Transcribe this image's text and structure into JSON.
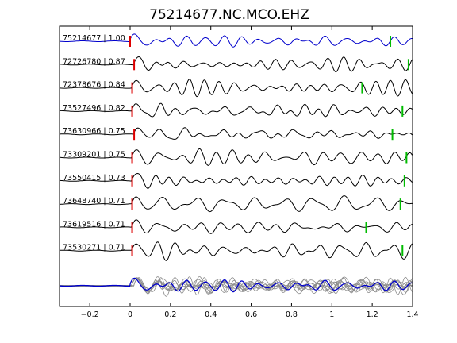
{
  "chart_data": {
    "type": "line",
    "title": "75214677.NC.MCO.EHZ",
    "xlabel": "",
    "ylabel": "",
    "xlim": [
      -0.35,
      1.4
    ],
    "xticks": [
      -0.2,
      0,
      0.2,
      0.4,
      0.6,
      0.8,
      1,
      1.2,
      1.4
    ],
    "xtick_labels": [
      "−0.2",
      "0",
      "0.2",
      "0.4",
      "0.6",
      "0.8",
      "1",
      "1.2",
      "1.4"
    ],
    "grid": false,
    "colors": {
      "reference_trace": "#0000cc",
      "matched_trace": "#000000",
      "overlay_trace": "#8a8a8a",
      "p_pick": "#dd0000",
      "s_pick": "#00bb00"
    },
    "traces": [
      {
        "label": "75214677 | 1.00",
        "p_pick": 0.0,
        "s_pick": 1.29,
        "seed": 11
      },
      {
        "label": "72726780 | 0.87",
        "p_pick": 0.02,
        "s_pick": 1.38,
        "seed": 23
      },
      {
        "label": "72378676 | 0.84",
        "p_pick": 0.01,
        "s_pick": 1.15,
        "seed": 37
      },
      {
        "label": "73527496 | 0.82",
        "p_pick": 0.01,
        "s_pick": 1.35,
        "seed": 41
      },
      {
        "label": "73630966 | 0.75",
        "p_pick": 0.02,
        "s_pick": 1.3,
        "seed": 53
      },
      {
        "label": "73309201 | 0.75",
        "p_pick": 0.01,
        "s_pick": 1.37,
        "seed": 61
      },
      {
        "label": "73550415 | 0.73",
        "p_pick": 0.01,
        "s_pick": 1.36,
        "seed": 73
      },
      {
        "label": "73648740 | 0.71",
        "p_pick": 0.01,
        "s_pick": 1.34,
        "seed": 89
      },
      {
        "label": "73619516 | 0.71",
        "p_pick": 0.01,
        "s_pick": 1.17,
        "seed": 97
      },
      {
        "label": "73530271 | 0.71",
        "p_pick": 0.01,
        "s_pick": 1.35,
        "seed": 103
      }
    ],
    "stack_overlay": true
  }
}
